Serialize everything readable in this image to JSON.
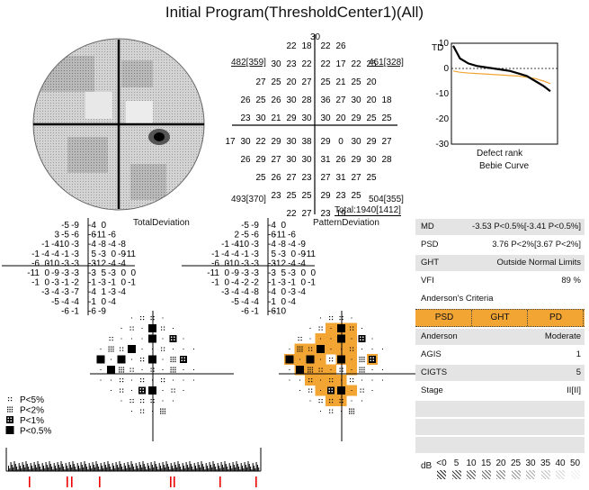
{
  "title": "Initial Program(ThresholdCenter1)(All)",
  "total_deviation_label": "TotalDeviation",
  "pattern_deviation_label": "PatternDeviation",
  "threshold": {
    "top": "30",
    "rows": [
      [
        "22",
        "18",
        "22",
        "26"
      ],
      [
        "30",
        "23",
        "22",
        "22",
        "17",
        "22",
        "25"
      ],
      [
        "27",
        "25",
        "20",
        "27",
        "25",
        "21",
        "25",
        "20"
      ],
      [
        "26",
        "25",
        "26",
        "30",
        "28",
        "36",
        "27",
        "30",
        "20",
        "18"
      ],
      [
        "23",
        "30",
        "21",
        "29",
        "30",
        "30",
        "20",
        "29",
        "25",
        "25"
      ],
      [
        "17",
        "30",
        "22",
        "29",
        "30",
        "38",
        "29",
        "0",
        "30",
        "29",
        "27"
      ],
      [
        "26",
        "29",
        "27",
        "30",
        "30",
        "31",
        "26",
        "29",
        "30",
        "28"
      ],
      [
        "25",
        "26",
        "27",
        "23",
        "27",
        "31",
        "27",
        "25"
      ],
      [
        "23",
        "25",
        "25",
        "29",
        "23",
        "25"
      ],
      [
        "22",
        "27",
        "23",
        "19"
      ]
    ],
    "box_tl": "482[359]",
    "box_tr": "461[328]",
    "box_bl": "493[370]",
    "box_br": "504[355]",
    "total": "Total:1940[1412]"
  },
  "td_values": [
    [
      "-5",
      "-9",
      "-4",
      "0"
    ],
    [
      "3",
      "-5",
      "-6",
      "-6",
      "-11",
      "-6"
    ],
    [
      "-1",
      "-4",
      "-10",
      "-3",
      "-4",
      "-8",
      "-4",
      "-8"
    ],
    [
      "-1",
      "-4",
      "-4",
      "-1",
      "-3",
      "5",
      "-3",
      "0",
      "-9",
      "-11"
    ],
    [
      "-6",
      "0",
      "-10",
      "-3",
      "-3",
      "-3",
      "-12",
      "-4",
      "-4"
    ],
    [
      "-11",
      "0",
      "-9",
      "-3",
      "-3",
      "-3",
      "5",
      "-3",
      "0",
      "0"
    ],
    [
      "-1",
      "0",
      "-3",
      "-1",
      "-2",
      "-1",
      "-3",
      "-1",
      "0",
      "-1"
    ],
    [
      "-3",
      "-4",
      "-3",
      "-7",
      "-4",
      "1",
      "-3",
      "-4"
    ],
    [
      "-5",
      "-4",
      "-4",
      "-1",
      "0",
      "-4"
    ],
    [
      "-6",
      "-1",
      "-6",
      "-9"
    ]
  ],
  "pd_values": [
    [
      "-5",
      "-9",
      "-4",
      "0"
    ],
    [
      "2",
      "-5",
      "-6",
      "-6",
      "-11",
      "-6"
    ],
    [
      "-1",
      "-4",
      "-10",
      "-3",
      "-4",
      "-8",
      "-4",
      "-9"
    ],
    [
      "-1",
      "-4",
      "-4",
      "-1",
      "-3",
      "5",
      "-3",
      "0",
      "-9",
      "-11"
    ],
    [
      "-6",
      "0",
      "-10",
      "-3",
      "-3",
      "-3",
      "-12",
      "-4",
      "-4"
    ],
    [
      "-11",
      "0",
      "-9",
      "-3",
      "-3",
      "-3",
      "5",
      "-3",
      "0",
      "0"
    ],
    [
      "-1",
      "0",
      "-4",
      "-2",
      "-2",
      "-1",
      "-3",
      "-1",
      "0",
      "-1"
    ],
    [
      "-3",
      "-4",
      "-4",
      "-8",
      "-4",
      "0",
      "-3",
      "-4"
    ],
    [
      "-5",
      "-4",
      "-4",
      "-1",
      "0",
      "-4"
    ],
    [
      "-6",
      "-1",
      "-6",
      "-10"
    ]
  ],
  "bebie": {
    "td_label": "TD",
    "y_ticks": [
      "10",
      "0",
      "-10",
      "-20",
      "-30"
    ],
    "xlabel": "Defect rank",
    "caption": "Bebie Curve"
  },
  "chart_data": {
    "type": "line",
    "title": "Bebie Curve",
    "xlabel": "Defect rank",
    "ylabel": "TD",
    "ylim": [
      -30,
      10
    ],
    "x": [
      1,
      5,
      10,
      15,
      20,
      25,
      30,
      35,
      40,
      45,
      50,
      55,
      59
    ],
    "series": [
      {
        "values": [
          9,
          4,
          2,
          1,
          0.5,
          0,
          -0.5,
          -1,
          -2,
          -3,
          -5,
          -7,
          -9
        ]
      },
      {
        "values": [
          -1,
          -1.5,
          -1.8,
          -2,
          -2.2,
          -2.4,
          -2.6,
          -2.8,
          -3,
          -3.5,
          -4,
          -5,
          -6
        ]
      }
    ]
  },
  "indices": [
    {
      "k": "MD",
      "v": "-3.53 P<0.5%[-3.41 P<0.5%]"
    },
    {
      "k": "PSD",
      "v": "3.76 P<2%[3.67 P<2%]"
    },
    {
      "k": "GHT",
      "v": "Outside Normal Limits"
    },
    {
      "k": "VFI",
      "v": "89 %"
    }
  ],
  "anderson": {
    "title": "Anderson's Criteria",
    "cells": [
      "PSD",
      "GHT",
      "PD"
    ],
    "rows": [
      {
        "k": "Anderson",
        "v": "Moderate"
      },
      {
        "k": "AGIS",
        "v": "1"
      },
      {
        "k": "CIGTS",
        "v": "5"
      },
      {
        "k": "Stage",
        "v": "II[II]"
      }
    ]
  },
  "prob_legend": [
    "P<5%",
    "P<2%",
    "P<1%",
    "P<0.5%"
  ],
  "db_scale": {
    "label": "dB",
    "ticks": [
      "<0",
      "5",
      "10",
      "15",
      "20",
      "25",
      "30",
      "35",
      "40",
      "50"
    ]
  }
}
